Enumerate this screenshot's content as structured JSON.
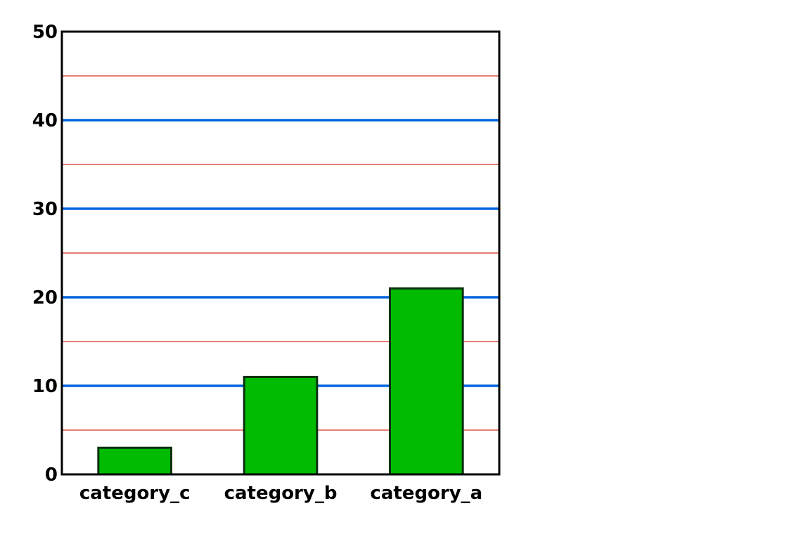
{
  "chart_data": {
    "type": "bar",
    "title": "",
    "xlabel": "",
    "ylabel": "",
    "categories": [
      "category_c",
      "category_b",
      "category_a"
    ],
    "values": [
      3,
      11,
      21
    ],
    "ylim": [
      0,
      50
    ],
    "yticks": [
      0,
      10,
      20,
      30,
      40,
      50
    ],
    "major_grid": [
      10,
      20,
      30,
      40
    ],
    "minor_grid": [
      5,
      15,
      25,
      35,
      45
    ],
    "grid": true,
    "colors": {
      "bar_fill": "#00bb00",
      "bar_edge": "#0a3010",
      "major_grid": "#0066dd",
      "minor_grid": "#dd5544",
      "axes": "#000000"
    }
  }
}
